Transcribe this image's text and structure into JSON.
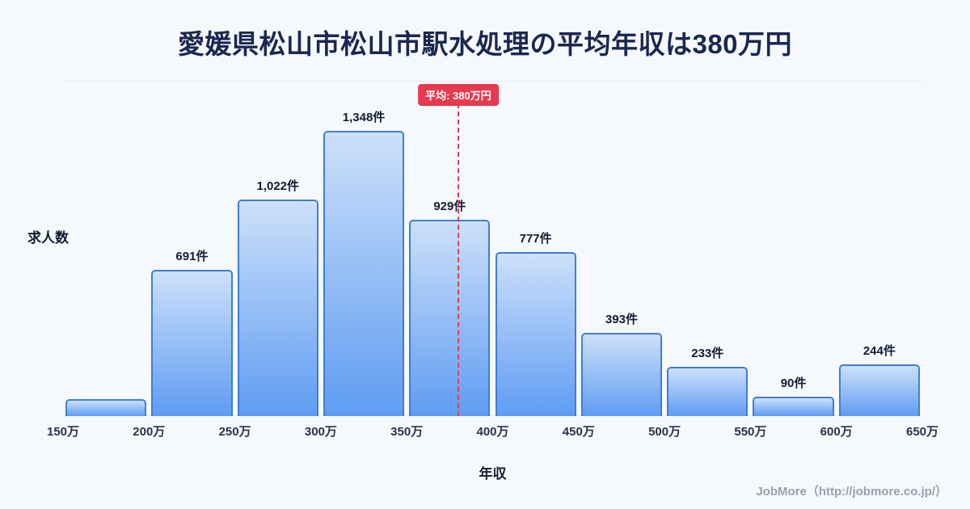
{
  "chart_data": {
    "type": "bar",
    "title": "愛媛県松山市松山市駅水処理の平均年収は380万円",
    "xlabel": "年収",
    "ylabel": "求人数",
    "x_ticks": [
      "150万",
      "200万",
      "250万",
      "300万",
      "350万",
      "400万",
      "450万",
      "500万",
      "550万",
      "600万",
      "650万"
    ],
    "categories": [
      "150万-200万",
      "200万-250万",
      "250万-300万",
      "300万-350万",
      "350万-400万",
      "400万-450万",
      "450万-500万",
      "500万-550万",
      "550万-600万",
      "600万-650万"
    ],
    "values": [
      80,
      691,
      1022,
      1348,
      929,
      777,
      393,
      233,
      90,
      244
    ],
    "bar_labels": [
      "",
      "691件",
      "1,022件",
      "1,348件",
      "929件",
      "777件",
      "393件",
      "233件",
      "90件",
      "244件"
    ],
    "average": {
      "value": 380,
      "label": "平均: 380万円"
    },
    "x_range": [
      150,
      650
    ],
    "ylim": [
      0,
      1600
    ],
    "grid": false,
    "legend": false,
    "colors": {
      "background": "#f6f9fc",
      "bar_fill_top": "#cde0fa",
      "bar_fill_bottom": "#5f9cf2",
      "bar_border": "#3e7ed8",
      "average_line": "#e8394e",
      "title_text": "#1a2850",
      "label_text": "#111c33",
      "tick_text": "#27324a",
      "footer_text": "#98a0ad",
      "axis_line": "#e2e8f0"
    }
  },
  "footer": {
    "credit": "JobMore（http://jobmore.co.jp/）"
  }
}
